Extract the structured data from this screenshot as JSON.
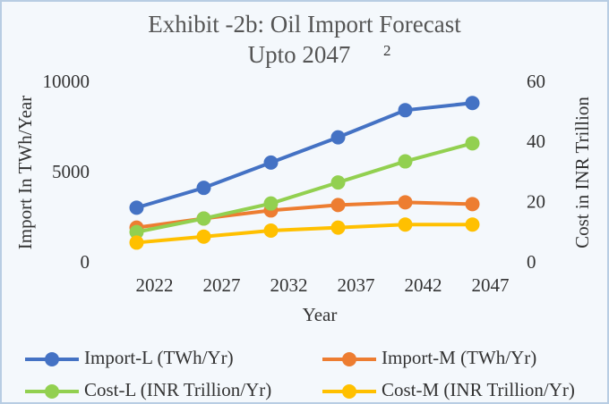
{
  "chart_data": {
    "type": "line",
    "title": [
      "Exhibit -2b: Oil Import Forecast",
      "Upto 2047"
    ],
    "title_footnote": "2",
    "x_label": "Year",
    "y_label": "Import In TWh/Year",
    "y2_label": "Cost in INR Trillion",
    "categories": [
      "2022",
      "2027",
      "2032",
      "2037",
      "2042",
      "2047"
    ],
    "ylim": [
      0,
      10000
    ],
    "yticks": [
      0,
      5000,
      10000
    ],
    "y2lim": [
      0,
      60
    ],
    "y2ticks": [
      0,
      20,
      40,
      60
    ],
    "grid": false,
    "legend": "bottom",
    "series": [
      {
        "name": "Import-L (TWh/Yr)",
        "color": "#4472c4",
        "values": [
          3100,
          4200,
          5600,
          7000,
          8500,
          8900
        ]
      },
      {
        "name": "Import-M (TWh/Yr)",
        "color": "#ed7d31",
        "values": [
          2000,
          2500,
          2950,
          3250,
          3400,
          3300
        ]
      },
      {
        "name": "Cost-L (INR Trillion/Yr)",
        "color": "#92d050",
        "axis": "y2",
        "values": [
          10.5,
          15,
          20,
          27,
          34,
          40
        ]
      },
      {
        "name": "Cost-M (INR Trillion/Yr)",
        "color": "#ffc000",
        "axis": "y2",
        "values": [
          7,
          9,
          11,
          12,
          13,
          13
        ]
      }
    ]
  }
}
